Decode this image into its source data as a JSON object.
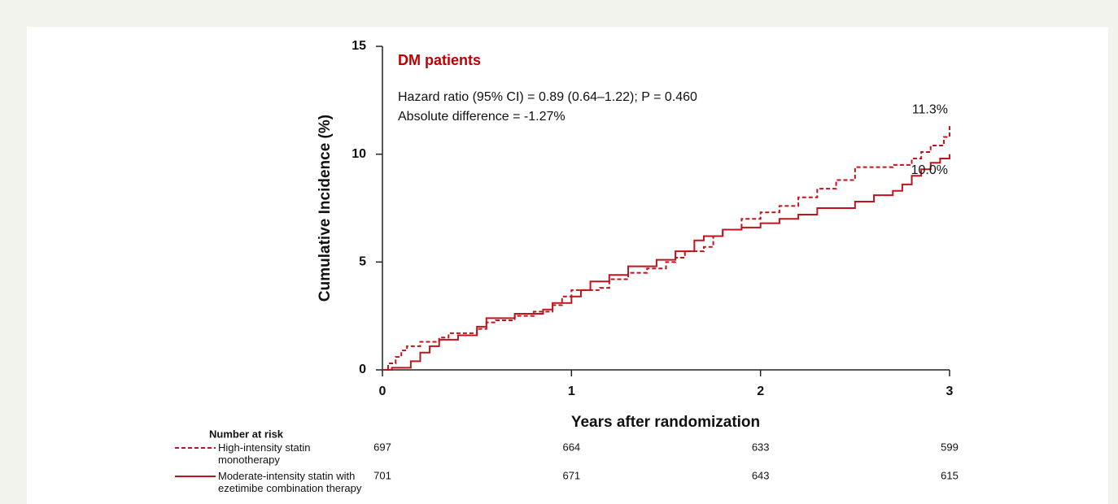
{
  "chart_data": {
    "type": "step",
    "title": "DM patients",
    "annotations": [
      "Hazard ratio (95% CI) = 0.89 (0.64–1.22); P = 0.460",
      "Absolute difference = -1.27%"
    ],
    "x_label": "Years after randomization",
    "y_label": "Cumulative Incidence (%)",
    "xlim": [
      0,
      3
    ],
    "xticks": [
      0,
      1,
      2,
      3
    ],
    "ylim": [
      0,
      15
    ],
    "yticks": [
      0,
      5,
      10,
      15
    ],
    "grid": false,
    "risk_table_title": "Number at risk",
    "series": [
      {
        "name": "High-intensity statin monotherapy",
        "color": "#c0141c",
        "dash": true,
        "x": [
          0,
          0.03,
          0.07,
          0.1,
          0.13,
          0.2,
          0.3,
          0.35,
          0.5,
          0.55,
          0.6,
          0.7,
          0.8,
          0.9,
          0.95,
          1.0,
          1.15,
          1.2,
          1.3,
          1.4,
          1.5,
          1.55,
          1.6,
          1.7,
          1.75,
          1.8,
          1.9,
          2.0,
          2.1,
          2.2,
          2.3,
          2.4,
          2.5,
          2.7,
          2.8,
          2.85,
          2.9,
          2.97,
          3.0
        ],
        "values": [
          0,
          0.3,
          0.6,
          0.9,
          1.1,
          1.3,
          1.5,
          1.7,
          1.9,
          2.2,
          2.3,
          2.5,
          2.7,
          3.0,
          3.4,
          3.7,
          3.8,
          4.2,
          4.5,
          4.7,
          5.0,
          5.2,
          5.5,
          5.7,
          6.2,
          6.5,
          7.0,
          7.3,
          7.6,
          8.0,
          8.4,
          8.8,
          9.4,
          9.5,
          9.8,
          10.1,
          10.4,
          10.8,
          11.3
        ],
        "end_label": "11.3%",
        "at_risk": [
          697,
          664,
          633,
          599
        ]
      },
      {
        "name": "Moderate-intensity statin with ezetimibe combination therapy",
        "color": "#c0141c",
        "dash": false,
        "x": [
          0,
          0.05,
          0.15,
          0.2,
          0.25,
          0.3,
          0.4,
          0.5,
          0.55,
          0.7,
          0.85,
          0.9,
          1.0,
          1.05,
          1.1,
          1.2,
          1.3,
          1.45,
          1.55,
          1.65,
          1.7,
          1.8,
          1.9,
          2.0,
          2.1,
          2.2,
          2.3,
          2.5,
          2.6,
          2.7,
          2.75,
          2.8,
          2.85,
          2.9,
          2.95,
          3.0
        ],
        "values": [
          0,
          0.1,
          0.4,
          0.8,
          1.1,
          1.4,
          1.6,
          2.0,
          2.4,
          2.6,
          2.8,
          3.1,
          3.4,
          3.7,
          4.1,
          4.4,
          4.8,
          5.1,
          5.5,
          6.0,
          6.2,
          6.5,
          6.6,
          6.8,
          7.0,
          7.2,
          7.5,
          7.8,
          8.1,
          8.3,
          8.6,
          9.0,
          9.3,
          9.6,
          9.8,
          10.0
        ],
        "end_label": "10.0%",
        "at_risk": [
          701,
          671,
          643,
          615
        ]
      }
    ]
  }
}
